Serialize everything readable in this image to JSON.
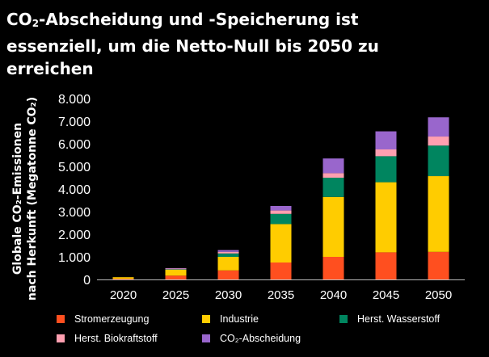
{
  "title": {
    "prefix": "CO",
    "sub": "2",
    "rest": "-Abscheidung und  -Speicherung ist essenziell, um die Netto-Null bis 2050 zu erreichen"
  },
  "chart_data": {
    "type": "bar",
    "stacked": true,
    "title": "CO₂-Abscheidung und  -Speicherung ist essenziell, um die Netto-Null bis 2050 zu erreichen",
    "ylabel_line1": "Globale CO₂-Emissionen",
    "ylabel_line2": "nach Herkunft (Megatonne CO₂)",
    "ylim": [
      0,
      8000
    ],
    "yticks": [
      0,
      1000,
      2000,
      3000,
      4000,
      5000,
      6000,
      7000,
      8000
    ],
    "ytick_labels": [
      "0",
      "1.000",
      "2.000",
      "3.000",
      "4.000",
      "5.000",
      "6.000",
      "7.000",
      "8.000"
    ],
    "grid": false,
    "legend_position": "bottom",
    "categories": [
      "2020",
      "2025",
      "2030",
      "2035",
      "2040",
      "2045",
      "2050"
    ],
    "series": [
      {
        "name": "Stromerzeugung",
        "color": "#FF4F1F",
        "values": [
          30,
          170,
          400,
          750,
          1000,
          1200,
          1220
        ]
      },
      {
        "name": "Industrie",
        "color": "#FFCC00",
        "values": [
          70,
          260,
          600,
          1700,
          2650,
          3100,
          3350
        ]
      },
      {
        "name": "Herst. Wasserstoff",
        "color": "#00855F",
        "values": [
          0,
          20,
          150,
          450,
          850,
          1150,
          1350
        ]
      },
      {
        "name": "Herst. Biokraftstoff",
        "color": "#FF9FB0",
        "values": [
          0,
          30,
          70,
          150,
          200,
          300,
          400
        ]
      },
      {
        "name": "CO₂-Abscheidung",
        "color": "#9966CC",
        "values": [
          0,
          20,
          80,
          200,
          650,
          800,
          850
        ]
      }
    ]
  }
}
